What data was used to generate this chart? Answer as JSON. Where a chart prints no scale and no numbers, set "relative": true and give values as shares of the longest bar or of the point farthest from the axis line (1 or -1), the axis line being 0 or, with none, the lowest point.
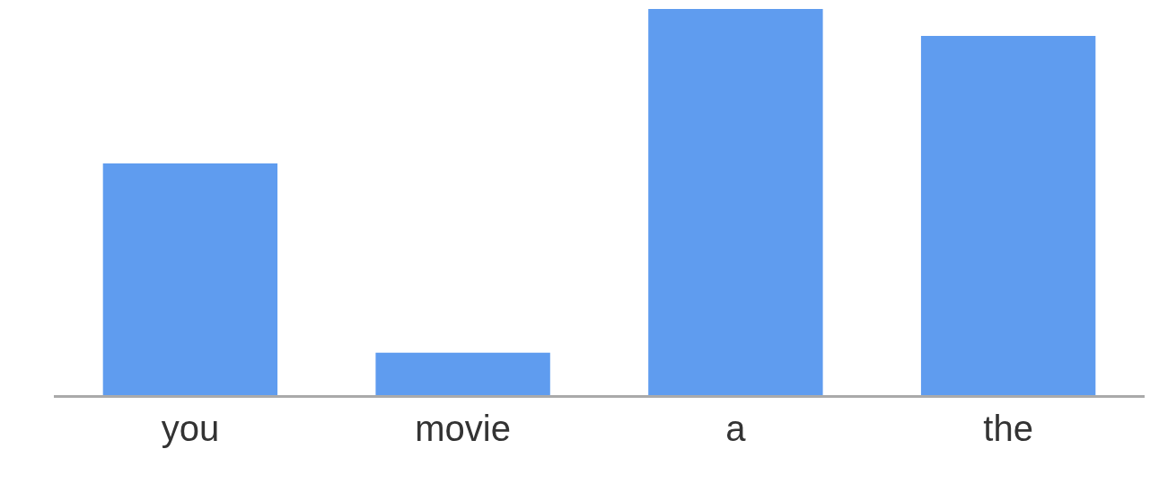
{
  "chart_data": {
    "type": "bar",
    "categories": [
      "you",
      "movie",
      "a",
      "the"
    ],
    "values": [
      0.6,
      0.11,
      1,
      0.93
    ],
    "color": "#5f9cef",
    "relative": true
  }
}
